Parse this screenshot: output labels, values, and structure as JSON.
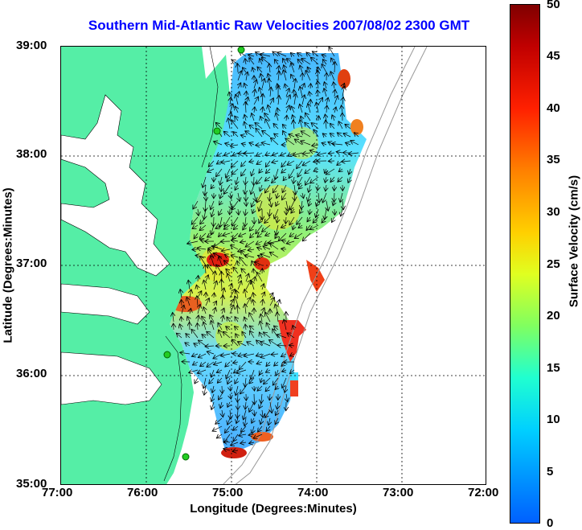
{
  "title": "Southern Mid-Atlantic Raw Velocities 2007/08/02 2300 GMT",
  "xaxis": {
    "label": "Longitude (Degrees:Minutes)",
    "ticks": [
      "77:00",
      "76:00",
      "75:00",
      "74:00",
      "73:00",
      "72:00"
    ]
  },
  "yaxis": {
    "label": "Latitude (Degrees:Minutes)",
    "ticks": [
      "39:00",
      "38:00",
      "37:00",
      "36:00",
      "35:00"
    ]
  },
  "colorbar": {
    "label": "Surface Velocity (cm/s)",
    "ticks": [
      "50",
      "45",
      "40",
      "35",
      "30",
      "25",
      "20",
      "15",
      "10",
      "5",
      "0"
    ],
    "range": [
      0,
      50
    ]
  },
  "colors": {
    "land": "#55eea6",
    "title": "#0000ff",
    "station": "#22cc22",
    "bathymetry": "#999999"
  },
  "chart_data": {
    "type": "heatmap",
    "title": "Southern Mid-Atlantic Raw Velocities 2007/08/02 2300 GMT",
    "xlabel": "Longitude (Degrees:Minutes)",
    "ylabel": "Latitude (Degrees:Minutes)",
    "xlim": [
      "77:00",
      "72:00"
    ],
    "ylim": [
      "35:00",
      "39:00"
    ],
    "grid": true,
    "colorbar_range": [
      0,
      50
    ],
    "colorbar_units": "cm/s",
    "high_speed_spots_lon_lat": [
      [
        -74.7,
        37.0
      ],
      [
        -75.2,
        37.0
      ],
      [
        -75.3,
        36.6
      ],
      [
        -74.4,
        36.6
      ],
      [
        -73.9,
        38.7
      ],
      [
        -73.6,
        38.3
      ],
      [
        -74.1,
        36.9
      ],
      [
        -74.9,
        35.3
      ]
    ]
  }
}
